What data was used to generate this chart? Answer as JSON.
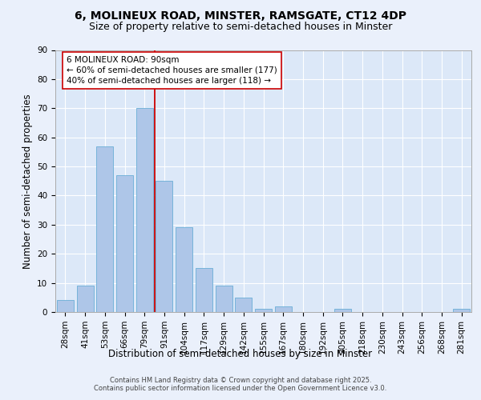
{
  "title_line1": "6, MOLINEUX ROAD, MINSTER, RAMSGATE, CT12 4DP",
  "title_line2": "Size of property relative to semi-detached houses in Minster",
  "xlabel": "Distribution of semi-detached houses by size in Minster",
  "ylabel": "Number of semi-detached properties",
  "categories": [
    "28sqm",
    "41sqm",
    "53sqm",
    "66sqm",
    "79sqm",
    "91sqm",
    "104sqm",
    "117sqm",
    "129sqm",
    "142sqm",
    "155sqm",
    "167sqm",
    "180sqm",
    "192sqm",
    "205sqm",
    "218sqm",
    "230sqm",
    "243sqm",
    "256sqm",
    "268sqm",
    "281sqm"
  ],
  "values": [
    4,
    9,
    57,
    47,
    70,
    45,
    29,
    15,
    9,
    5,
    1,
    2,
    0,
    0,
    1,
    0,
    0,
    0,
    0,
    0,
    1
  ],
  "bar_color": "#aec6e8",
  "bar_edgecolor": "#6aaed6",
  "vline_color": "#cc0000",
  "annotation_text": "6 MOLINEUX ROAD: 90sqm\n← 60% of semi-detached houses are smaller (177)\n40% of semi-detached houses are larger (118) →",
  "annotation_box_edgecolor": "#cc0000",
  "annotation_box_facecolor": "#ffffff",
  "background_color": "#eaf0fb",
  "plot_background": "#dce8f8",
  "footer_text": "Contains HM Land Registry data © Crown copyright and database right 2025.\nContains public sector information licensed under the Open Government Licence v3.0.",
  "ylim": [
    0,
    90
  ],
  "yticks": [
    0,
    10,
    20,
    30,
    40,
    50,
    60,
    70,
    80,
    90
  ],
  "title_fontsize": 10,
  "subtitle_fontsize": 9,
  "axis_label_fontsize": 8.5,
  "tick_fontsize": 7.5,
  "annotation_fontsize": 7.5,
  "footer_fontsize": 6
}
